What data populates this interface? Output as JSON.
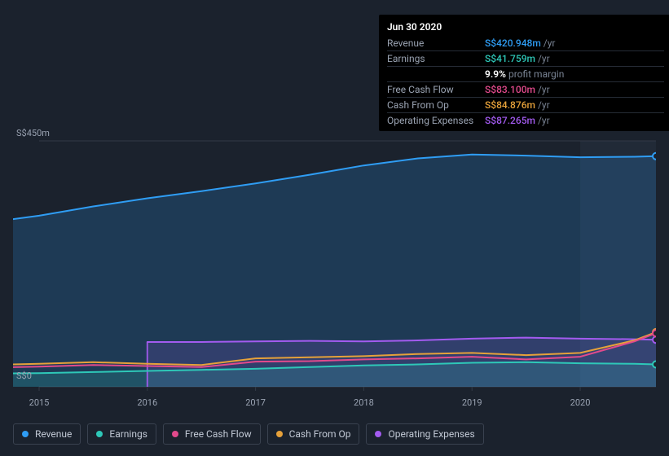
{
  "tooltip": {
    "date": "Jun 30 2020",
    "rows": [
      {
        "label": "Revenue",
        "amount": "S$420.948m",
        "unit": "/yr",
        "color": "#2f9df4"
      },
      {
        "label": "Earnings",
        "amount": "S$41.759m",
        "unit": "/yr",
        "color": "#2ec8b8"
      },
      {
        "label": "",
        "pct": "9.9%",
        "aux": "profit margin"
      },
      {
        "label": "Free Cash Flow",
        "amount": "S$83.100m",
        "unit": "/yr",
        "color": "#e24a8c"
      },
      {
        "label": "Cash From Op",
        "amount": "S$84.876m",
        "unit": "/yr",
        "color": "#e6a13a"
      },
      {
        "label": "Operating Expenses",
        "amount": "S$87.265m",
        "unit": "/yr",
        "color": "#a35bf0"
      }
    ]
  },
  "legend": [
    {
      "label": "Revenue",
      "color": "#2f9df4"
    },
    {
      "label": "Earnings",
      "color": "#2ec8b8"
    },
    {
      "label": "Free Cash Flow",
      "color": "#e24a8c"
    },
    {
      "label": "Cash From Op",
      "color": "#e6a13a"
    },
    {
      "label": "Operating Expenses",
      "color": "#a35bf0"
    }
  ],
  "chart": {
    "type": "area",
    "x_start_year": 2015,
    "x_end_year": 2020.7,
    "ymin": 0,
    "ymax": 450,
    "ylabel_top": "S$450m",
    "ylabel_bot": "S$0",
    "x_ticks": [
      2015,
      2016,
      2017,
      2018,
      2019,
      2020
    ],
    "plot_bg": "#1b222d",
    "grid_color": "#333b47",
    "axis_font_color": "#9aa3b2",
    "cursor_x_year": 2020.5,
    "highlight_band": {
      "from_year": 2020.0,
      "to_year": 2020.7,
      "fill": "#212a37"
    },
    "series": {
      "revenue": {
        "color": "#2f9df4",
        "fill_opacity": 0.2,
        "line_width": 2,
        "points": [
          [
            2014.5,
            300
          ],
          [
            2015.0,
            313
          ],
          [
            2015.5,
            330
          ],
          [
            2016.0,
            345
          ],
          [
            2016.5,
            358
          ],
          [
            2017.0,
            372
          ],
          [
            2017.5,
            388
          ],
          [
            2018.0,
            405
          ],
          [
            2018.5,
            418
          ],
          [
            2019.0,
            425
          ],
          [
            2019.5,
            423
          ],
          [
            2020.0,
            420
          ],
          [
            2020.5,
            421
          ],
          [
            2020.7,
            422
          ]
        ]
      },
      "op_exp": {
        "color": "#a35bf0",
        "fill_opacity": 0.15,
        "line_width": 2,
        "start_year": 2016.0,
        "points": [
          [
            2016.0,
            82
          ],
          [
            2016.5,
            82
          ],
          [
            2017.0,
            83
          ],
          [
            2017.5,
            84
          ],
          [
            2018.0,
            83
          ],
          [
            2018.5,
            85
          ],
          [
            2019.0,
            88
          ],
          [
            2019.5,
            90
          ],
          [
            2020.0,
            88
          ],
          [
            2020.5,
            87
          ],
          [
            2020.7,
            86
          ]
        ]
      },
      "cash_from_op": {
        "color": "#e6a13a",
        "fill_opacity": 0.0,
        "line_width": 2,
        "points": [
          [
            2014.5,
            40
          ],
          [
            2015.0,
            42
          ],
          [
            2015.5,
            45
          ],
          [
            2016.0,
            42
          ],
          [
            2016.5,
            40
          ],
          [
            2017.0,
            52
          ],
          [
            2017.5,
            54
          ],
          [
            2018.0,
            56
          ],
          [
            2018.5,
            60
          ],
          [
            2019.0,
            62
          ],
          [
            2019.5,
            58
          ],
          [
            2020.0,
            62
          ],
          [
            2020.5,
            85
          ],
          [
            2020.7,
            100
          ]
        ]
      },
      "fcf": {
        "color": "#e24a8c",
        "fill_opacity": 0.0,
        "line_width": 2,
        "points": [
          [
            2014.5,
            35
          ],
          [
            2015.0,
            37
          ],
          [
            2015.5,
            40
          ],
          [
            2016.0,
            38
          ],
          [
            2016.5,
            36
          ],
          [
            2017.0,
            46
          ],
          [
            2017.5,
            47
          ],
          [
            2018.0,
            50
          ],
          [
            2018.5,
            52
          ],
          [
            2019.0,
            55
          ],
          [
            2019.5,
            50
          ],
          [
            2020.0,
            55
          ],
          [
            2020.5,
            83
          ],
          [
            2020.7,
            98
          ]
        ]
      },
      "earnings": {
        "color": "#2ec8b8",
        "fill_opacity": 0.18,
        "line_width": 2,
        "points": [
          [
            2014.5,
            24
          ],
          [
            2015.0,
            25
          ],
          [
            2015.5,
            27
          ],
          [
            2016.0,
            29
          ],
          [
            2016.5,
            31
          ],
          [
            2017.0,
            33
          ],
          [
            2017.5,
            36
          ],
          [
            2018.0,
            39
          ],
          [
            2018.5,
            41
          ],
          [
            2019.0,
            44
          ],
          [
            2019.5,
            45
          ],
          [
            2020.0,
            43
          ],
          [
            2020.5,
            42
          ],
          [
            2020.7,
            41
          ]
        ]
      }
    }
  }
}
